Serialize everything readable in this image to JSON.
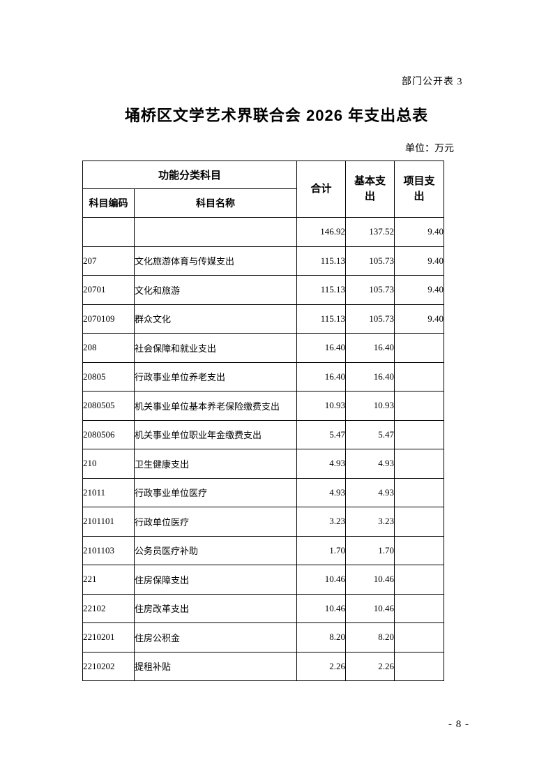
{
  "page": {
    "doc_label": "部门公开表 3",
    "title": "埇桥区文学艺术界联合会 2026 年支出总表",
    "unit_note": "单位：万元",
    "page_number": "- 8 -"
  },
  "table": {
    "header": {
      "function_group": "功能分类科目",
      "code": "科目编码",
      "name": "科目名称",
      "total": "合计",
      "basic": "基本支出",
      "project": "项目支出"
    },
    "rows": [
      {
        "code": "",
        "name": "",
        "total": "146.92",
        "basic": "137.52",
        "project": "9.40"
      },
      {
        "code": "207",
        "name": "文化旅游体育与传媒支出",
        "total": "115.13",
        "basic": "105.73",
        "project": "9.40"
      },
      {
        "code": "20701",
        "name": "文化和旅游",
        "total": "115.13",
        "basic": "105.73",
        "project": "9.40"
      },
      {
        "code": "2070109",
        "name": "群众文化",
        "total": "115.13",
        "basic": "105.73",
        "project": "9.40"
      },
      {
        "code": "208",
        "name": "社会保障和就业支出",
        "total": "16.40",
        "basic": "16.40",
        "project": ""
      },
      {
        "code": "20805",
        "name": "行政事业单位养老支出",
        "total": "16.40",
        "basic": "16.40",
        "project": ""
      },
      {
        "code": "2080505",
        "name": "机关事业单位基本养老保险缴费支出",
        "total": "10.93",
        "basic": "10.93",
        "project": ""
      },
      {
        "code": "2080506",
        "name": "机关事业单位职业年金缴费支出",
        "total": "5.47",
        "basic": "5.47",
        "project": ""
      },
      {
        "code": "210",
        "name": "卫生健康支出",
        "total": "4.93",
        "basic": "4.93",
        "project": ""
      },
      {
        "code": "21011",
        "name": "行政事业单位医疗",
        "total": "4.93",
        "basic": "4.93",
        "project": ""
      },
      {
        "code": "2101101",
        "name": "行政单位医疗",
        "total": "3.23",
        "basic": "3.23",
        "project": ""
      },
      {
        "code": "2101103",
        "name": "公务员医疗补助",
        "total": "1.70",
        "basic": "1.70",
        "project": ""
      },
      {
        "code": "221",
        "name": "住房保障支出",
        "total": "10.46",
        "basic": "10.46",
        "project": ""
      },
      {
        "code": "22102",
        "name": "住房改革支出",
        "total": "10.46",
        "basic": "10.46",
        "project": ""
      },
      {
        "code": "2210201",
        "name": "住房公积金",
        "total": "8.20",
        "basic": "8.20",
        "project": ""
      },
      {
        "code": "2210202",
        "name": "提租补贴",
        "total": "2.26",
        "basic": "2.26",
        "project": ""
      }
    ]
  }
}
